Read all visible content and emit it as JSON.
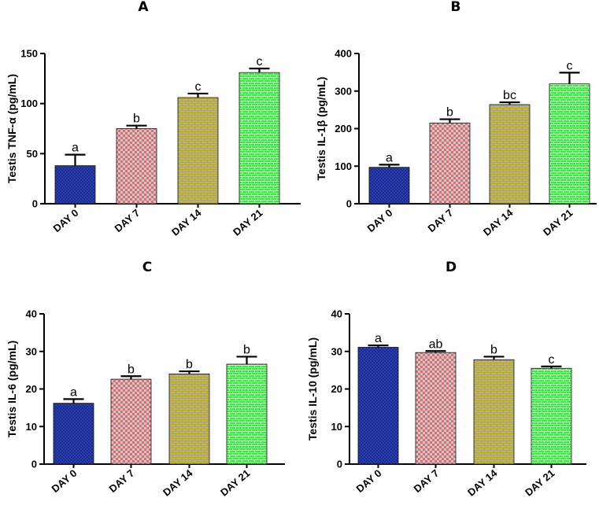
{
  "colors": {
    "day0": "#1a2a8c",
    "day7": "#e8696b",
    "day14": "#b5a832",
    "day21": "#46e84a",
    "axis": "#000000"
  },
  "chart_data": [
    {
      "panel": "A",
      "type": "bar",
      "ylabel": "Testis TNF-α (pg/mL)",
      "ylim": [
        0,
        150
      ],
      "yticks": [
        0,
        50,
        100,
        150
      ],
      "categories": [
        "DAY 0",
        "DAY 7",
        "DAY 14",
        "DAY 21"
      ],
      "values": [
        38,
        75,
        106,
        131
      ],
      "errors": [
        11,
        3,
        4,
        4
      ],
      "letters": [
        "a",
        "b",
        "c",
        "c"
      ]
    },
    {
      "panel": "B",
      "type": "bar",
      "ylabel": "Testis IL-1β (pg/mL)",
      "ylim": [
        0,
        400
      ],
      "yticks": [
        0,
        100,
        200,
        300,
        400
      ],
      "categories": [
        "DAY 0",
        "DAY 7",
        "DAY 14",
        "DAY 21"
      ],
      "values": [
        97,
        215,
        264,
        319
      ],
      "errors": [
        7,
        10,
        6,
        30
      ],
      "letters": [
        "a",
        "b",
        "bc",
        "c"
      ]
    },
    {
      "panel": "C",
      "type": "bar",
      "ylabel": "Testis IL-6 (pg/mL)",
      "ylim": [
        0,
        40
      ],
      "yticks": [
        0,
        10,
        20,
        30,
        40
      ],
      "categories": [
        "DAY 0",
        "DAY 7",
        "DAY 14",
        "DAY 21"
      ],
      "values": [
        16.2,
        22.6,
        24,
        26.6
      ],
      "errors": [
        1.1,
        0.8,
        0.7,
        2.0
      ],
      "letters": [
        "a",
        "b",
        "b",
        "b"
      ]
    },
    {
      "panel": "D",
      "type": "bar",
      "ylabel": "Testis IL-10 (pg/mL)",
      "ylim": [
        0,
        40
      ],
      "yticks": [
        0,
        10,
        20,
        30,
        40
      ],
      "categories": [
        "DAY 0",
        "DAY 7",
        "DAY 14",
        "DAY 21"
      ],
      "values": [
        31.1,
        29.7,
        27.8,
        25.5
      ],
      "errors": [
        0.5,
        0.4,
        0.8,
        0.5
      ],
      "letters": [
        "a",
        "ab",
        "b",
        "c"
      ]
    }
  ]
}
